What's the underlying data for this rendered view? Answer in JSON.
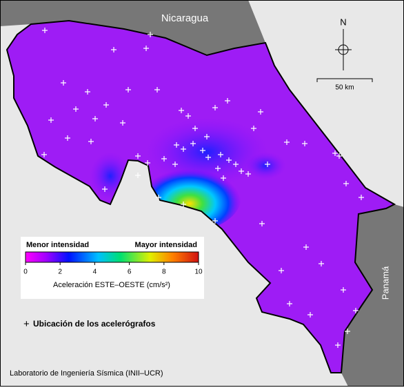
{
  "map": {
    "countries": [
      "Nicaragua",
      "Panamá"
    ],
    "north_label": "N",
    "scale_label": "50 km"
  },
  "colorbar": {
    "low_label": "Menor intensidad",
    "high_label": "Mayor intensidad",
    "lim": [
      0,
      10
    ],
    "ticks": [
      0,
      2,
      4,
      6,
      8,
      10
    ],
    "title": "Aceleración ESTE–OESTE (cm/s²)"
  },
  "legend": {
    "stations": "Ubicación de los acelerógrafos"
  },
  "credit": "Laboratorio de Ingeniería Sísmica (INII–UCR)"
}
